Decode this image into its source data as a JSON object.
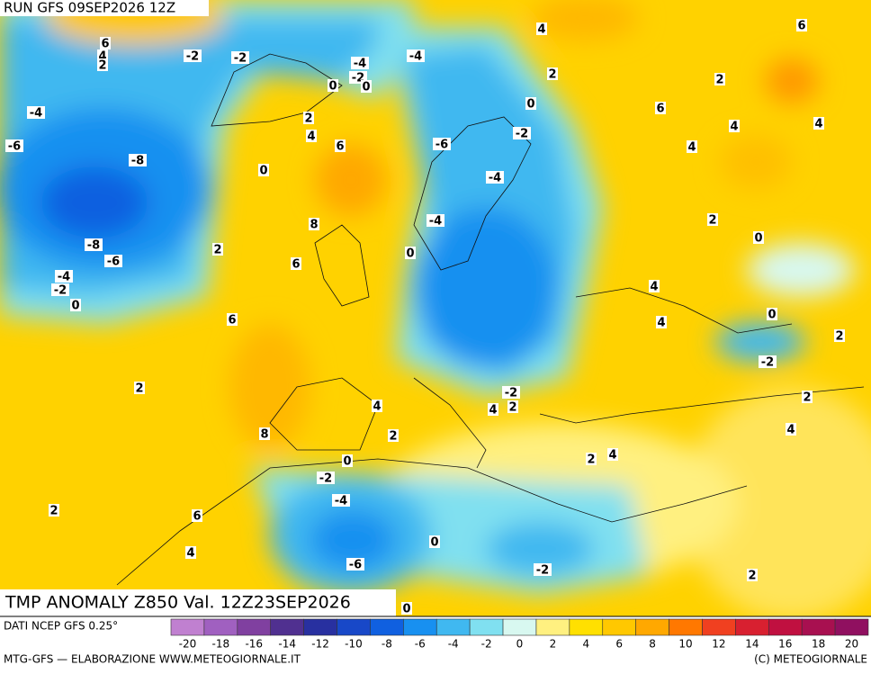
{
  "header": {
    "run": "RUN GFS 09SEP2026 12Z"
  },
  "map": {
    "title": "TMP ANOMALY Z850 Val. 12Z23SEP2026",
    "contour_labels": [
      6,
      4,
      2,
      -2,
      -2,
      -4,
      -2,
      0,
      0,
      -4,
      4,
      2,
      0,
      -2,
      -6,
      -4,
      -4,
      0,
      6,
      2,
      6,
      4,
      4,
      4,
      -4,
      -6,
      -8,
      -8,
      -6,
      -4,
      -2,
      0,
      2,
      4,
      6,
      0,
      8,
      2,
      6,
      6,
      2,
      0,
      4,
      4,
      0,
      2,
      -2,
      2,
      4,
      -2,
      4,
      2,
      2,
      4,
      8,
      2,
      0,
      4,
      2,
      -2,
      -4,
      2,
      6,
      4,
      0,
      -6,
      -2,
      2,
      0
    ]
  },
  "colorbar": {
    "source": "DATI NCEP GFS 0.25°",
    "ticks": [
      -20,
      -18,
      -16,
      -14,
      -12,
      -10,
      -8,
      -6,
      -4,
      -2,
      0,
      2,
      4,
      6,
      8,
      10,
      12,
      14,
      16,
      18,
      20
    ],
    "tick_labels": [
      {
        "value": -20,
        "label": "-20"
      },
      {
        "value": -16,
        "label": "-16"
      },
      {
        "value": -12,
        "label": "-12"
      },
      {
        "value": -8,
        "label": "-8"
      },
      {
        "value": -4,
        "label": "-4"
      },
      {
        "value": 0,
        "label": "0"
      },
      {
        "value": 4,
        "label": "4"
      },
      {
        "value": 8,
        "label": "8"
      },
      {
        "value": 12,
        "label": "12"
      },
      {
        "value": 16,
        "label": "16"
      },
      {
        "value": 20,
        "label": "20"
      },
      {
        "value": -18,
        "label": "-18"
      },
      {
        "value": -14,
        "label": "-14"
      },
      {
        "value": -10,
        "label": "-10"
      },
      {
        "value": -6,
        "label": "-6"
      },
      {
        "value": -2,
        "label": "-2"
      },
      {
        "value": 2,
        "label": "2"
      },
      {
        "value": 6,
        "label": "6"
      },
      {
        "value": 10,
        "label": "10"
      },
      {
        "value": 14,
        "label": "14"
      },
      {
        "value": 18,
        "label": "18"
      }
    ],
    "colors": [
      "#c080d0",
      "#a060c0",
      "#8040a0",
      "#503090",
      "#2830a0",
      "#1848c8",
      "#1060e0",
      "#1890f0",
      "#40b8f0",
      "#80e0f0",
      "#d8f8f0",
      "#fff080",
      "#ffe000",
      "#ffc800",
      "#ffa800",
      "#ff7800",
      "#f04020",
      "#d82030",
      "#c01040",
      "#a81050",
      "#901060"
    ]
  },
  "footer": {
    "credit": "MTG-GFS — ELABORAZIONE WWW.METEOGIORNALE.IT",
    "copyright": "(C) METEOGIORNALE"
  }
}
